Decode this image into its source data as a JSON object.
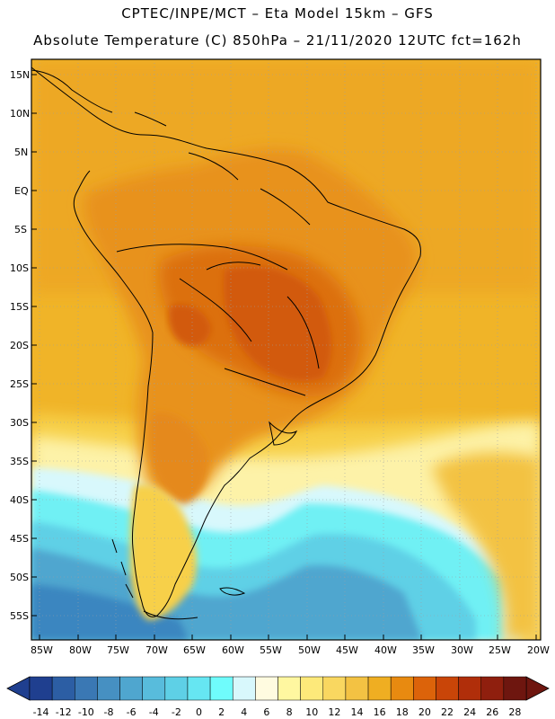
{
  "header": {
    "line1": "CPTEC/INPE/MCT –   Eta Model 15km – GFS",
    "line2": "Absolute Temperature (C) 850hPa – 21/11/2020 12UTC fct=162h"
  },
  "axes": {
    "lat_labels": [
      "15N",
      "10N",
      "5N",
      "EQ",
      "5S",
      "10S",
      "15S",
      "20S",
      "25S",
      "30S",
      "35S",
      "40S",
      "45S",
      "50S",
      "55S"
    ],
    "lon_labels": [
      "85W",
      "80W",
      "75W",
      "70W",
      "65W",
      "60W",
      "55W",
      "50W",
      "45W",
      "40W",
      "35W",
      "30W",
      "25W",
      "20W"
    ]
  },
  "colorbar": {
    "labels": [
      "-14",
      "-12",
      "-10",
      "-8",
      "-6",
      "-4",
      "-2",
      "0",
      "2",
      "4",
      "6",
      "8",
      "10",
      "12",
      "14",
      "16",
      "18",
      "20",
      "22",
      "24",
      "26",
      "28"
    ],
    "colors": [
      "#1f3f8f",
      "#2c5ea4",
      "#3a78b4",
      "#4690c2",
      "#4fa6cf",
      "#58bcdc",
      "#5ed0e6",
      "#66e6f2",
      "#6ffcfc",
      "#d8f8fc",
      "#fffbe0",
      "#fff7a0",
      "#fde97a",
      "#f9d760",
      "#f3c243",
      "#efae22",
      "#e88a10",
      "#dc630a",
      "#c94508",
      "#b02e0a",
      "#8f1f0e",
      "#6e160f"
    ]
  },
  "map_colors": {
    "ocean_mid": "#f0b428",
    "land_warm": "#e8921c",
    "land_hot": "#d9640e",
    "cool_band": "#fdf2a8",
    "cold_band": "#6ff0f4",
    "very_cold": "#4aa8d2",
    "coldest": "#3a86c0"
  }
}
